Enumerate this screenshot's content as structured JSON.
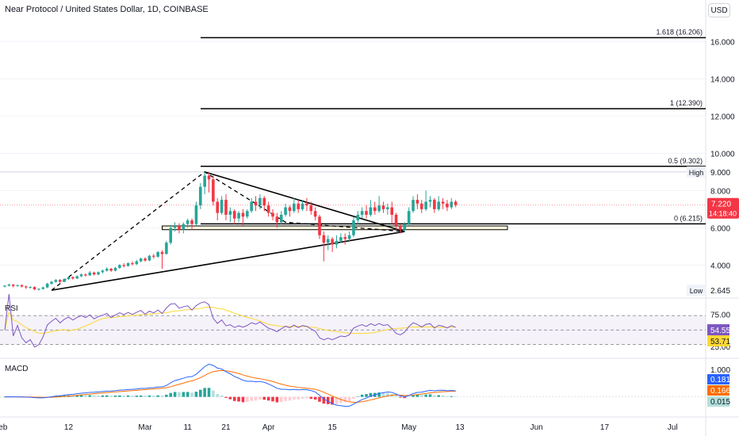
{
  "header": {
    "title": "Near Protocol / United States Dollar, 1D, COINBASE",
    "currency": "USD"
  },
  "colors": {
    "up": "#26a69a",
    "down": "#f23645",
    "rsi": "#7e57c2",
    "rsi_ma": "#fdd835",
    "macd": "#2962ff",
    "signal": "#ff6d00"
  },
  "chart_data": [
    {
      "type": "candlestick",
      "title": "Near Protocol / United States Dollar, 1D, COINBASE",
      "y_ticks": [
        "4.000",
        "6.000",
        "8.000",
        "10.000",
        "12.000",
        "14.000",
        "16.000"
      ],
      "ylim": [
        2.4,
        17.8
      ],
      "x_ticks": [
        "Feb",
        "12",
        "Mar",
        "11",
        "21",
        "Apr",
        "15",
        "May",
        "13",
        "Jun",
        "17",
        "Jul"
      ],
      "fib_levels": [
        {
          "label": "1.618 (16.206)",
          "value": 16.206
        },
        {
          "label": "1 (12.390)",
          "value": 12.39
        },
        {
          "label": "0.5 (9.302)",
          "value": 9.302
        },
        {
          "label": "0 (6.215)",
          "value": 6.215
        }
      ],
      "high": {
        "label": "High",
        "value": "9.000"
      },
      "low": {
        "label": "Low",
        "value": "2.645"
      },
      "last_price": {
        "value": "7.220",
        "countdown": "14:18:40"
      },
      "candles": [
        [
          2.85,
          2.9,
          2.8,
          2.92
        ],
        [
          2.9,
          2.95,
          2.85,
          3.0
        ],
        [
          2.95,
          2.88,
          2.8,
          2.98
        ],
        [
          2.88,
          2.92,
          2.84,
          2.95
        ],
        [
          2.92,
          2.85,
          2.8,
          2.96
        ],
        [
          2.85,
          2.8,
          2.72,
          2.9
        ],
        [
          2.8,
          2.82,
          2.74,
          2.87
        ],
        [
          2.82,
          2.7,
          2.65,
          2.86
        ],
        [
          2.7,
          2.72,
          2.64,
          2.76
        ],
        [
          2.72,
          2.8,
          2.68,
          2.85
        ],
        [
          2.8,
          3.0,
          2.76,
          3.05
        ],
        [
          3.0,
          3.1,
          2.95,
          3.15
        ],
        [
          3.1,
          3.2,
          3.05,
          3.25
        ],
        [
          3.2,
          3.1,
          3.05,
          3.25
        ],
        [
          3.1,
          3.25,
          3.08,
          3.3
        ],
        [
          3.25,
          3.35,
          3.2,
          3.4
        ],
        [
          3.35,
          3.28,
          3.22,
          3.4
        ],
        [
          3.28,
          3.4,
          3.25,
          3.45
        ],
        [
          3.4,
          3.5,
          3.35,
          3.55
        ],
        [
          3.5,
          3.45,
          3.38,
          3.55
        ],
        [
          3.45,
          3.6,
          3.42,
          3.68
        ],
        [
          3.6,
          3.5,
          3.44,
          3.65
        ],
        [
          3.5,
          3.62,
          3.45,
          3.66
        ],
        [
          3.62,
          3.7,
          3.55,
          3.76
        ],
        [
          3.7,
          3.8,
          3.65,
          3.88
        ],
        [
          3.8,
          3.7,
          3.64,
          3.85
        ],
        [
          3.7,
          3.85,
          3.66,
          3.9
        ],
        [
          3.85,
          4.0,
          3.8,
          4.05
        ],
        [
          4.0,
          3.95,
          3.88,
          4.1
        ],
        [
          3.95,
          4.1,
          3.92,
          4.15
        ],
        [
          4.1,
          4.05,
          3.98,
          4.2
        ],
        [
          4.05,
          4.2,
          4.0,
          4.28
        ],
        [
          4.2,
          4.35,
          4.15,
          4.4
        ],
        [
          4.35,
          4.25,
          4.18,
          4.42
        ],
        [
          4.25,
          4.5,
          4.2,
          4.55
        ],
        [
          4.5,
          4.45,
          4.35,
          4.6
        ],
        [
          4.45,
          4.7,
          4.4,
          4.75
        ],
        [
          4.7,
          4.6,
          3.8,
          4.8
        ],
        [
          4.6,
          5.2,
          4.55,
          5.3
        ],
        [
          5.2,
          6.0,
          5.1,
          6.15
        ],
        [
          6.0,
          6.1,
          5.8,
          6.3
        ],
        [
          6.1,
          5.9,
          5.7,
          6.25
        ],
        [
          5.9,
          6.2,
          5.7,
          6.3
        ],
        [
          6.2,
          6.4,
          6.0,
          6.5
        ],
        [
          6.4,
          6.2,
          5.9,
          6.5
        ],
        [
          6.2,
          7.2,
          6.1,
          7.4
        ],
        [
          7.2,
          8.2,
          7.0,
          8.4
        ],
        [
          8.2,
          8.8,
          7.8,
          9.0
        ],
        [
          8.8,
          8.6,
          7.9,
          9.0
        ],
        [
          8.6,
          7.4,
          7.2,
          8.8
        ],
        [
          7.4,
          6.8,
          6.4,
          7.6
        ],
        [
          6.8,
          7.5,
          6.7,
          7.7
        ],
        [
          7.5,
          6.7,
          6.4,
          7.8
        ],
        [
          6.7,
          6.9,
          6.3,
          7.1
        ],
        [
          6.9,
          6.5,
          6.2,
          7.0
        ],
        [
          6.5,
          6.8,
          6.3,
          6.9
        ],
        [
          6.8,
          6.6,
          6.1,
          7.0
        ],
        [
          6.6,
          6.9,
          6.5,
          7.0
        ],
        [
          6.9,
          7.4,
          6.8,
          7.6
        ],
        [
          7.4,
          7.2,
          6.9,
          7.7
        ],
        [
          7.2,
          7.6,
          7.0,
          7.8
        ],
        [
          7.6,
          7.2,
          6.9,
          7.7
        ],
        [
          7.2,
          6.8,
          6.6,
          7.4
        ],
        [
          6.8,
          6.6,
          6.4,
          7.0
        ],
        [
          6.6,
          6.3,
          6.0,
          6.8
        ],
        [
          6.3,
          6.7,
          6.2,
          6.9
        ],
        [
          6.7,
          7.1,
          6.6,
          7.3
        ],
        [
          7.1,
          6.9,
          6.6,
          7.2
        ],
        [
          6.9,
          7.3,
          6.8,
          7.6
        ],
        [
          7.3,
          7.0,
          6.8,
          7.5
        ],
        [
          7.0,
          7.3,
          6.9,
          7.5
        ],
        [
          7.3,
          7.2,
          6.9,
          7.6
        ],
        [
          7.2,
          6.9,
          6.7,
          7.4
        ],
        [
          6.9,
          6.6,
          6.4,
          7.1
        ],
        [
          6.6,
          5.6,
          5.4,
          6.7
        ],
        [
          5.6,
          5.2,
          4.2,
          5.8
        ],
        [
          5.2,
          5.4,
          4.8,
          5.6
        ],
        [
          5.4,
          5.1,
          4.7,
          5.5
        ],
        [
          5.1,
          5.3,
          4.9,
          5.6
        ],
        [
          5.3,
          5.5,
          5.2,
          5.7
        ],
        [
          5.5,
          5.4,
          5.1,
          5.7
        ],
        [
          5.4,
          5.6,
          5.3,
          5.8
        ],
        [
          5.6,
          6.4,
          5.5,
          6.6
        ],
        [
          6.4,
          6.7,
          6.2,
          6.9
        ],
        [
          6.7,
          6.9,
          6.5,
          7.1
        ],
        [
          6.9,
          6.7,
          6.5,
          7.2
        ],
        [
          6.7,
          7.1,
          6.6,
          7.5
        ],
        [
          7.1,
          6.9,
          6.7,
          7.4
        ],
        [
          6.9,
          7.2,
          6.8,
          7.7
        ],
        [
          7.2,
          7.0,
          6.8,
          7.4
        ],
        [
          7.0,
          7.1,
          6.7,
          7.3
        ],
        [
          7.1,
          6.7,
          6.2,
          7.4
        ],
        [
          6.7,
          6.1,
          5.9,
          6.8
        ],
        [
          6.1,
          5.9,
          5.7,
          6.2
        ],
        [
          5.9,
          6.2,
          5.8,
          6.3
        ],
        [
          6.2,
          6.9,
          6.1,
          7.1
        ],
        [
          6.9,
          7.5,
          6.8,
          7.7
        ],
        [
          7.5,
          7.3,
          7.0,
          7.8
        ],
        [
          7.3,
          7.0,
          6.8,
          7.5
        ],
        [
          7.0,
          7.4,
          6.9,
          8.0
        ],
        [
          7.4,
          7.5,
          7.1,
          7.7
        ],
        [
          7.5,
          7.0,
          6.8,
          7.6
        ],
        [
          7.0,
          7.4,
          6.9,
          7.7
        ],
        [
          7.4,
          7.3,
          7.0,
          7.6
        ],
        [
          7.3,
          7.1,
          6.9,
          7.5
        ],
        [
          7.1,
          7.4,
          7.0,
          7.6
        ],
        [
          7.4,
          7.22,
          7.1,
          7.5
        ]
      ]
    },
    {
      "type": "line",
      "title": "RSI",
      "y_ticks": [
        "75.00",
        "25.00"
      ],
      "series": [
        {
          "name": "RSI",
          "value_label": "54.55"
        },
        {
          "name": "RSI MA",
          "value_label": "53.71"
        }
      ]
    },
    {
      "type": "bar",
      "title": "MACD",
      "y_ticks": [
        "1.000"
      ],
      "labels": {
        "macd": "0.181",
        "signal": "0.166",
        "histogram": "0.015"
      }
    }
  ]
}
